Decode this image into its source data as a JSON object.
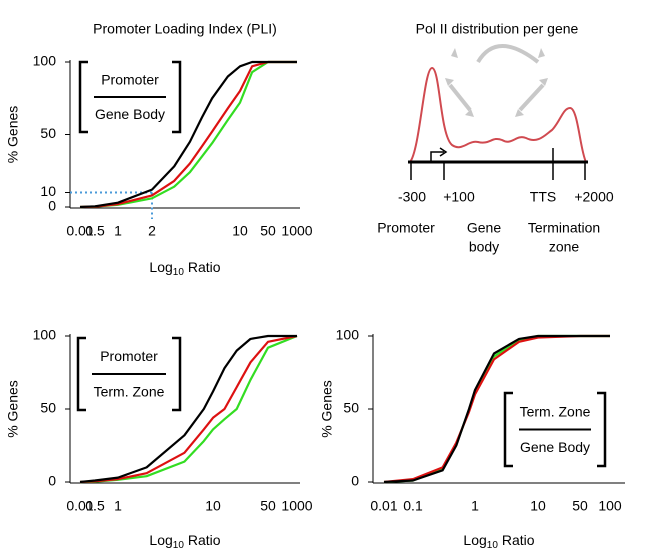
{
  "chart_data": [
    {
      "type": "line",
      "title": "Promoter Loading Index (PLI)",
      "y_label": "% Genes",
      "x_label": {
        "main": "Log",
        "sub": "10",
        "rest": "Ratio"
      },
      "log_x": true,
      "xlim": [
        0.01,
        1000
      ],
      "ylim": [
        0,
        100
      ],
      "xticks": [
        0.01,
        0.5,
        1,
        2,
        10,
        50,
        1000
      ],
      "yticks": [
        0,
        10,
        50,
        100
      ],
      "box": {
        "numerator": "Promoter",
        "denominator": "Gene Body"
      },
      "marker": {
        "x": 2,
        "y": 10,
        "color": "#4a9ad8"
      },
      "series": [
        {
          "color": "#33dd22",
          "x": [
            0.01,
            0.5,
            1,
            2,
            3,
            4,
            5,
            6,
            8,
            10,
            20,
            50,
            1000
          ],
          "values": [
            0,
            0.2,
            1.5,
            6,
            14,
            24,
            35,
            44,
            60,
            72,
            93,
            100,
            100
          ]
        },
        {
          "color": "#dd1111",
          "x": [
            0.01,
            0.5,
            1,
            2,
            3,
            4,
            5,
            6,
            8,
            10,
            20,
            50,
            1000
          ],
          "values": [
            0,
            0.3,
            2,
            8,
            18,
            30,
            42,
            52,
            68,
            80,
            97,
            100,
            100
          ]
        },
        {
          "color": "#000000",
          "x": [
            0.01,
            0.5,
            1,
            2,
            3,
            4,
            5,
            6,
            8,
            10,
            20,
            50,
            1000
          ],
          "values": [
            0,
            0.5,
            3,
            12,
            28,
            45,
            62,
            75,
            90,
            97,
            100,
            100,
            100
          ]
        }
      ]
    },
    {
      "type": "line",
      "y_label": "% Genes",
      "x_label": {
        "main": "Log",
        "sub": "10",
        "rest": "Ratio"
      },
      "log_x": true,
      "xlim": [
        0.01,
        1000
      ],
      "ylim": [
        0,
        100
      ],
      "xticks": [
        0.01,
        0.5,
        1,
        10,
        50,
        1000
      ],
      "yticks": [
        0,
        50,
        100
      ],
      "box": {
        "numerator": "Promoter",
        "denominator": "Term. Zone"
      },
      "series": [
        {
          "color": "#33dd22",
          "x": [
            0.01,
            0.5,
            1,
            2,
            5,
            8,
            10,
            14,
            20,
            30,
            50,
            1000
          ],
          "values": [
            0,
            0.3,
            1.5,
            4,
            14,
            28,
            36,
            43,
            50,
            70,
            92,
            100
          ]
        },
        {
          "color": "#dd1111",
          "x": [
            0.01,
            0.5,
            1,
            2,
            5,
            8,
            10,
            14,
            20,
            30,
            50,
            1000
          ],
          "values": [
            0,
            0.5,
            2,
            6,
            20,
            36,
            44,
            50,
            65,
            82,
            96,
            100
          ]
        },
        {
          "color": "#000000",
          "x": [
            0.01,
            0.5,
            1,
            2,
            5,
            8,
            10,
            14,
            20,
            30,
            50,
            1000
          ],
          "values": [
            0,
            1,
            3,
            10,
            32,
            50,
            62,
            78,
            90,
            98,
            100,
            100
          ]
        }
      ]
    },
    {
      "type": "line",
      "y_label": "% Genes",
      "x_label": {
        "main": "Log",
        "sub": "10",
        "rest": "Ratio"
      },
      "log_x": true,
      "xlim": [
        0.01,
        100
      ],
      "ylim": [
        0,
        100
      ],
      "xticks": [
        0.01,
        0.1,
        1,
        10,
        50,
        100
      ],
      "yticks": [
        0,
        50,
        100
      ],
      "box": {
        "numerator": "Term. Zone",
        "denominator": "Gene Body"
      },
      "series": [
        {
          "color": "#33dd22",
          "x": [
            0.01,
            0.1,
            0.3,
            0.5,
            0.8,
            1,
            2,
            5,
            10,
            50,
            100
          ],
          "values": [
            0,
            1,
            9,
            26,
            49,
            62,
            86,
            97,
            100,
            100,
            100
          ]
        },
        {
          "color": "#dd1111",
          "x": [
            0.01,
            0.1,
            0.3,
            0.5,
            0.8,
            1,
            2,
            5,
            10,
            50,
            100
          ],
          "values": [
            0,
            2,
            10,
            27,
            48,
            60,
            84,
            96,
            99,
            100,
            100
          ]
        },
        {
          "color": "#000000",
          "x": [
            0.01,
            0.1,
            0.3,
            0.5,
            0.8,
            1,
            2,
            5,
            10,
            50,
            100
          ],
          "values": [
            0,
            1,
            8,
            25,
            50,
            63,
            88,
            98,
            100,
            100,
            100
          ]
        }
      ]
    }
  ],
  "diagram": {
    "title": "Pol II distribution per gene",
    "positions": [
      "-300",
      "+100",
      "TTS",
      "+2000"
    ],
    "regions": [
      [
        "Promoter"
      ],
      [
        "Gene",
        "body"
      ],
      [
        "Termination",
        "zone"
      ]
    ]
  }
}
